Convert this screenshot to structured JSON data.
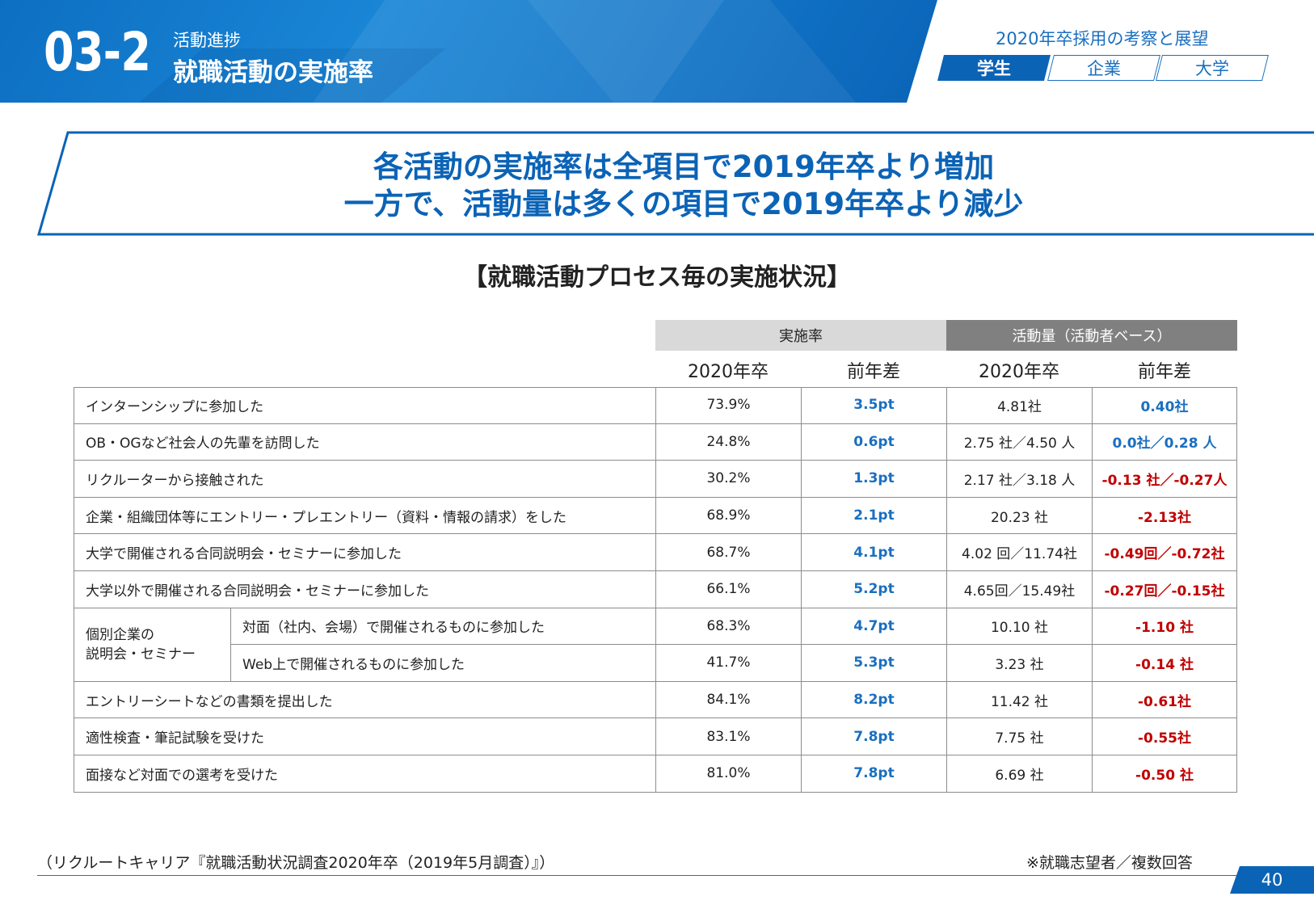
{
  "header": {
    "section_number": "03-2",
    "section_sub": "活動進捗",
    "section_title": "就職活動の実施率",
    "doc_title": "2020年卒採用の考察と展望",
    "tabs": [
      {
        "label": "学生",
        "active": true
      },
      {
        "label": "企業",
        "active": false
      },
      {
        "label": "大学",
        "active": false
      }
    ]
  },
  "headline": {
    "line1": "各活動の実施率は全項目で2019年卒より増加",
    "line2": "一方で、活動量は多くの項目で2019年卒より減少"
  },
  "subheading": "【就職活動プロセス毎の実施状況】",
  "table": {
    "group_headers": [
      "実施率",
      "活動量（活動者ベース）"
    ],
    "col_headers": [
      "2020年卒",
      "前年差",
      "2020年卒",
      "前年差"
    ],
    "rows": [
      {
        "label": "インターンシップに参加した",
        "rate": "73.9%",
        "rate_diff": "3.5pt",
        "amount": "4.81社",
        "amount_diff": "0.40社",
        "amount_diff_sign": "pos"
      },
      {
        "label": "OB・OGなど社会人の先輩を訪問した",
        "rate": "24.8%",
        "rate_diff": "0.6pt",
        "amount": "2.75 社／4.50 人",
        "amount_diff": "0.0社／0.28 人",
        "amount_diff_sign": "pos"
      },
      {
        "label": "リクルーターから接触された",
        "rate": "30.2%",
        "rate_diff": "1.3pt",
        "amount": "2.17 社／3.18 人",
        "amount_diff": "-0.13 社／-0.27人",
        "amount_diff_sign": "neg"
      },
      {
        "label": "企業・組織団体等にエントリー・プレエントリー（資料・情報の請求）をした",
        "rate": "68.9%",
        "rate_diff": "2.1pt",
        "amount": "20.23 社",
        "amount_diff": "-2.13社",
        "amount_diff_sign": "neg"
      },
      {
        "label": "大学で開催される合同説明会・セミナーに参加した",
        "rate": "68.7%",
        "rate_diff": "4.1pt",
        "amount": "4.02 回／11.74社",
        "amount_diff": "-0.49回／-0.72社",
        "amount_diff_sign": "neg"
      },
      {
        "label": "大学以外で開催される合同説明会・セミナーに参加した",
        "rate": "66.1%",
        "rate_diff": "5.2pt",
        "amount": "4.65回／15.49社",
        "amount_diff": "-0.27回／-0.15社",
        "amount_diff_sign": "neg"
      }
    ],
    "group": {
      "label_line1": "個別企業の",
      "label_line2": "説明会・セミナー",
      "rows": [
        {
          "label": "対面（社内、会場）で開催されるものに参加した",
          "rate": "68.3%",
          "rate_diff": "4.7pt",
          "amount": "10.10 社",
          "amount_diff": "-1.10 社",
          "amount_diff_sign": "neg"
        },
        {
          "label": "Web上で開催されるものに参加した",
          "rate": "41.7%",
          "rate_diff": "5.3pt",
          "amount": "3.23 社",
          "amount_diff": "-0.14 社",
          "amount_diff_sign": "neg"
        }
      ]
    },
    "rows_after": [
      {
        "label": "エントリーシートなどの書類を提出した",
        "rate": "84.1%",
        "rate_diff": "8.2pt",
        "amount": "11.42 社",
        "amount_diff": "-0.61社",
        "amount_diff_sign": "neg"
      },
      {
        "label": "適性検査・筆記試験を受けた",
        "rate": "83.1%",
        "rate_diff": "7.8pt",
        "amount": "7.75 社",
        "amount_diff": "-0.55社",
        "amount_diff_sign": "neg"
      },
      {
        "label": "面接など対面での選考を受けた",
        "rate": "81.0%",
        "rate_diff": "7.8pt",
        "amount": "6.69 社",
        "amount_diff": "-0.50 社",
        "amount_diff_sign": "neg"
      }
    ]
  },
  "footer": {
    "source": "（リクルートキャリア『就職活動状況調査2020年卒（2019年5月調査）』）",
    "note": "※就職志望者／複数回答",
    "page": "40"
  },
  "colors": {
    "brand_blue": "#0b63b6",
    "positive": "#1a6fc0",
    "negative": "#c00000"
  }
}
